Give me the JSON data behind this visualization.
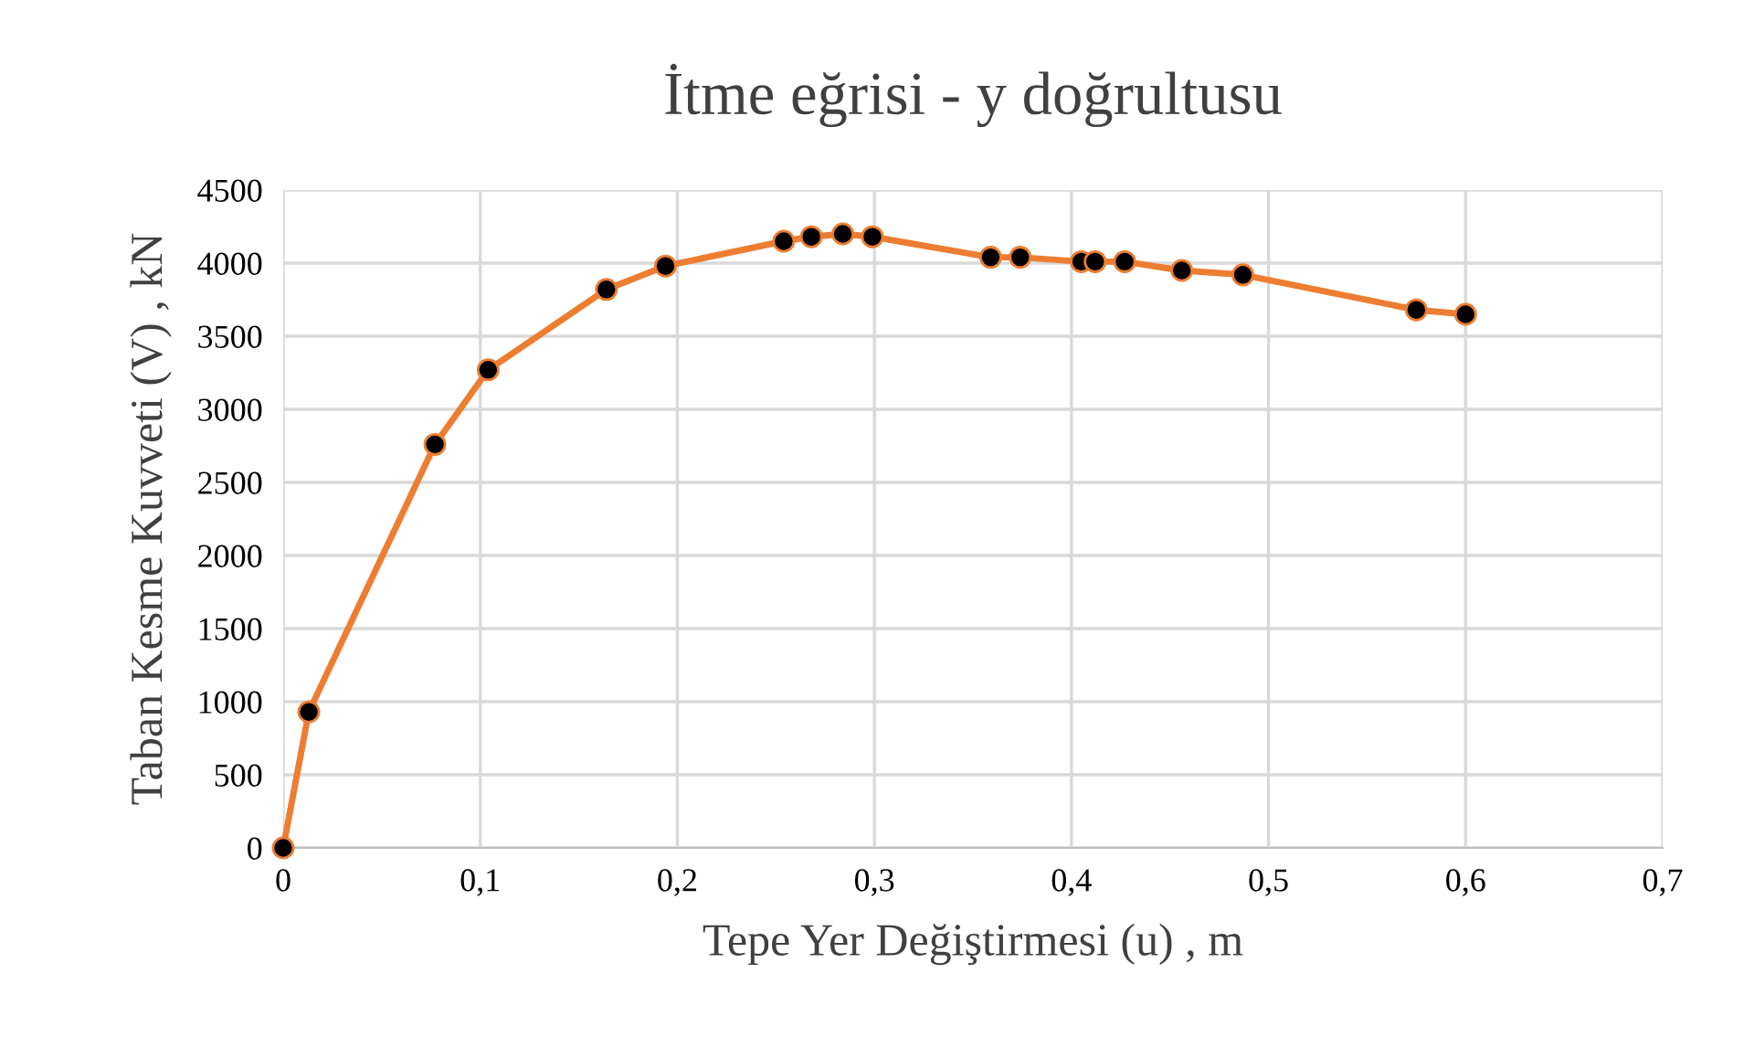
{
  "chart_data": {
    "type": "line",
    "title": "İtme eğrisi - y doğrultusu",
    "xlabel": "Tepe Yer Değiştirmesi (u) , m",
    "ylabel": "Taban Kesme Kuvveti (V) , kN",
    "series": [
      {
        "color": "#ed7d31",
        "x": [
          0,
          0.013,
          0.077,
          0.104,
          0.164,
          0.194,
          0.254,
          0.268,
          0.284,
          0.299,
          0.359,
          0.374,
          0.405,
          0.412,
          0.427,
          0.456,
          0.487,
          0.575,
          0.6
        ],
        "values": [
          0,
          930,
          2760,
          3270,
          3820,
          3980,
          4150,
          4180,
          4200,
          4180,
          4040,
          4040,
          4010,
          4010,
          4010,
          3950,
          3920,
          3680,
          3650
        ]
      }
    ],
    "xlim": [
      0,
      0.7
    ],
    "xticks": [
      {
        "value": 0,
        "label": "0"
      },
      {
        "value": 0.1,
        "label": "0,1"
      },
      {
        "value": 0.2,
        "label": "0,2"
      },
      {
        "value": 0.3,
        "label": "0,3"
      },
      {
        "value": 0.4,
        "label": "0,4"
      },
      {
        "value": 0.5,
        "label": "0,5"
      },
      {
        "value": 0.6,
        "label": "0,6"
      },
      {
        "value": 0.7,
        "label": "0,7"
      }
    ],
    "ylim": [
      0,
      4500
    ],
    "yticks": [
      0,
      500,
      1000,
      1500,
      2000,
      2500,
      3000,
      3500,
      4000,
      4500
    ],
    "grid": true,
    "marker": "circle",
    "line_style": "solid"
  }
}
